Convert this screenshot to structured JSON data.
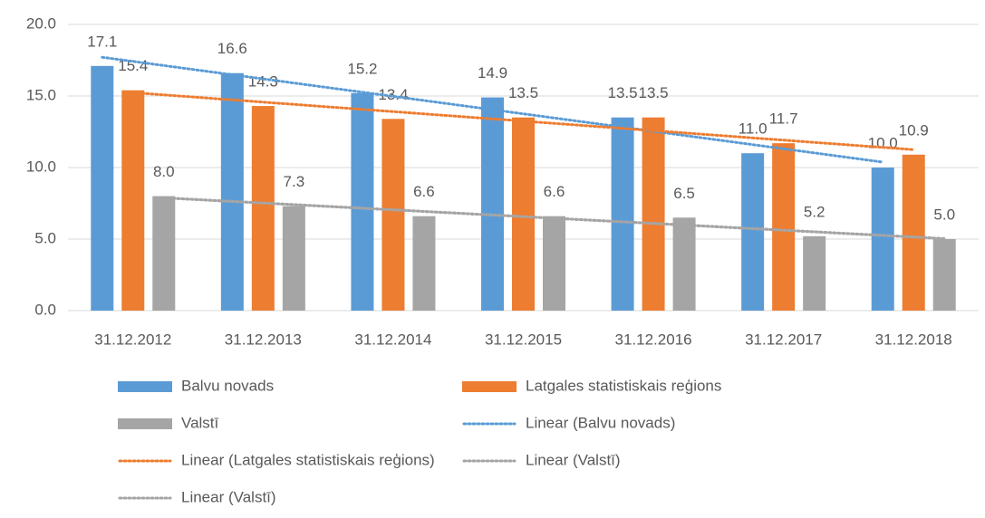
{
  "chart_data": {
    "type": "bar",
    "categories": [
      "31.12.2012",
      "31.12.2013",
      "31.12.2014",
      "31.12.2015",
      "31.12.2016",
      "31.12.2017",
      "31.12.2018"
    ],
    "series": [
      {
        "name": "Balvu novads",
        "color": "#5b9bd5",
        "values": [
          17.1,
          16.6,
          15.2,
          14.9,
          13.5,
          11,
          10
        ],
        "value_labels": [
          "17.1",
          "16.6",
          "15.2",
          "14.9",
          "13.5",
          "11.0",
          "10.0"
        ],
        "trendlines": [
          {
            "name": "Linear (Balvu novads)",
            "type": "linear",
            "color": "#5b9bd5"
          }
        ]
      },
      {
        "name": "Latgales statistiskais reģions",
        "color": "#ed7d31",
        "values": [
          15.4,
          14.3,
          13.4,
          13.5,
          13.5,
          11.7,
          10.9
        ],
        "value_labels": [
          "15.4",
          "14.3",
          "13.4",
          "13.5",
          "13.5",
          "11.7",
          "10.9"
        ],
        "trendlines": [
          {
            "name": "Linear (Latgales statistiskais reģions)",
            "type": "linear",
            "color": "#ed7d31"
          }
        ]
      },
      {
        "name": "Valstī",
        "color": "#a5a5a5",
        "values": [
          8,
          7.3,
          6.6,
          6.6,
          6.5,
          5.2,
          5
        ],
        "value_labels": [
          "8.0",
          "7.3",
          "6.6",
          "6.6",
          "6.5",
          "5.2",
          "5.0"
        ],
        "trendlines": [
          {
            "name": "Linear (Valstī)",
            "type": "linear",
            "color": "#a5a5a5"
          },
          {
            "name": "Linear (Valstī)",
            "type": "linear",
            "color": "#a5a5a5"
          }
        ]
      }
    ],
    "ylim": [
      0,
      20
    ],
    "yticks": [
      {
        "value": 0,
        "label": "0.0"
      },
      {
        "value": 5,
        "label": "5.0"
      },
      {
        "value": 10,
        "label": "10.0"
      },
      {
        "value": 15,
        "label": "15.0"
      },
      {
        "value": 20,
        "label": "20.0"
      }
    ],
    "grid": true,
    "legend": "bottom"
  }
}
